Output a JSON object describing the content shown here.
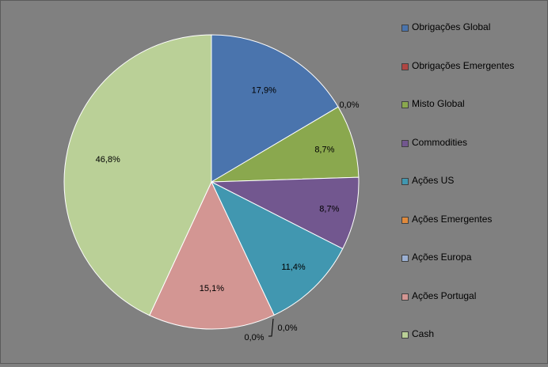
{
  "chart_data": {
    "type": "pie",
    "title": "",
    "categories": [
      "Obrigações Global",
      "Obrigações Emergentes",
      "Misto Global",
      "Commodities",
      "Ações US",
      "Ações Emergentes",
      "Ações Europa",
      "Ações Portugal",
      "Cash"
    ],
    "values": [
      17.9,
      0.0,
      8.7,
      8.7,
      11.4,
      0.0,
      0.0,
      15.1,
      46.8
    ],
    "labels": [
      "17,9%",
      "0,0%",
      "8,7%",
      "8,7%",
      "11,4%",
      "0,0%",
      "0,0%",
      "15,1%",
      "46,8%"
    ],
    "colors": [
      "#4a74ad",
      "#b04642",
      "#8aa84e",
      "#72578f",
      "#4197b0",
      "#e08a3c",
      "#9bb0d3",
      "#d39693",
      "#bad097"
    ],
    "legend_position": "right",
    "start_angle_deg": 0,
    "direction": "clockwise"
  }
}
